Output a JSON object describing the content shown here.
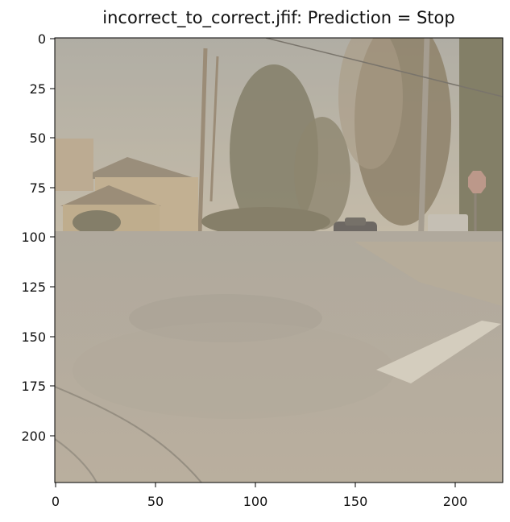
{
  "title": "incorrect_to_correct.jfif: Prediction = Stop",
  "x_ticks": [
    "0",
    "50",
    "100",
    "150",
    "200"
  ],
  "y_ticks": [
    "0",
    "25",
    "50",
    "75",
    "100",
    "125",
    "150",
    "175",
    "200"
  ]
}
